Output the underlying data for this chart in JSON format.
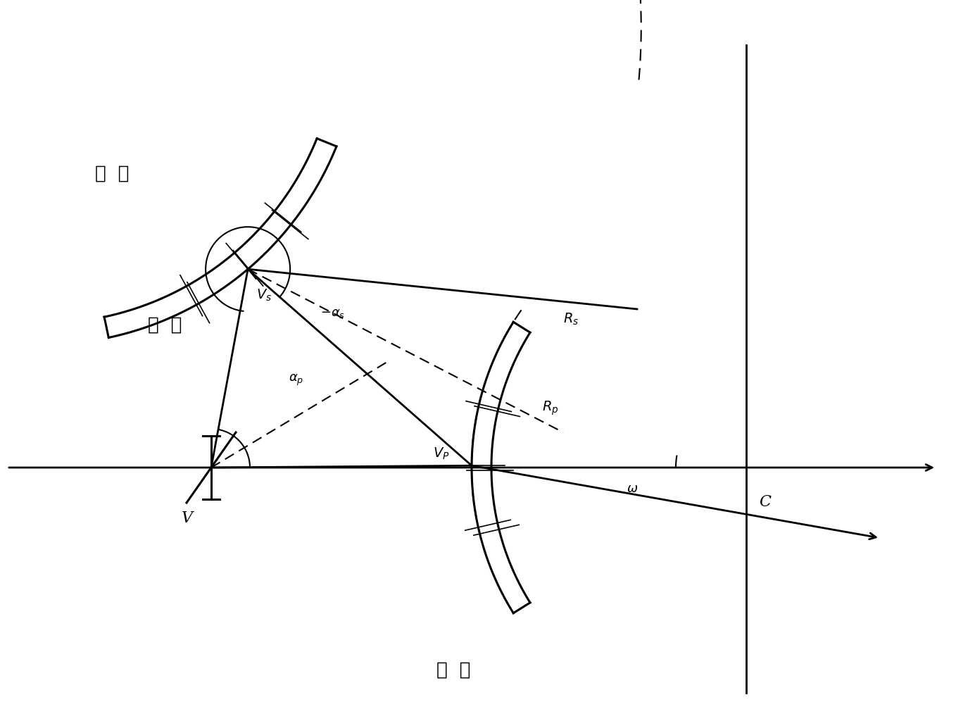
{
  "background_color": "#ffffff",
  "figsize": [
    13.58,
    10.14
  ],
  "dpi": 100,
  "xlim": [
    0,
    13.58
  ],
  "ylim": [
    0,
    10.14
  ],
  "V": [
    3.0,
    3.5
  ],
  "C": [
    10.6,
    3.5
  ],
  "Vs": [
    3.5,
    6.3
  ],
  "Vp": [
    6.7,
    4.6
  ],
  "lw": 2.0,
  "lw_mirror": 2.2,
  "lw_thin": 1.5
}
